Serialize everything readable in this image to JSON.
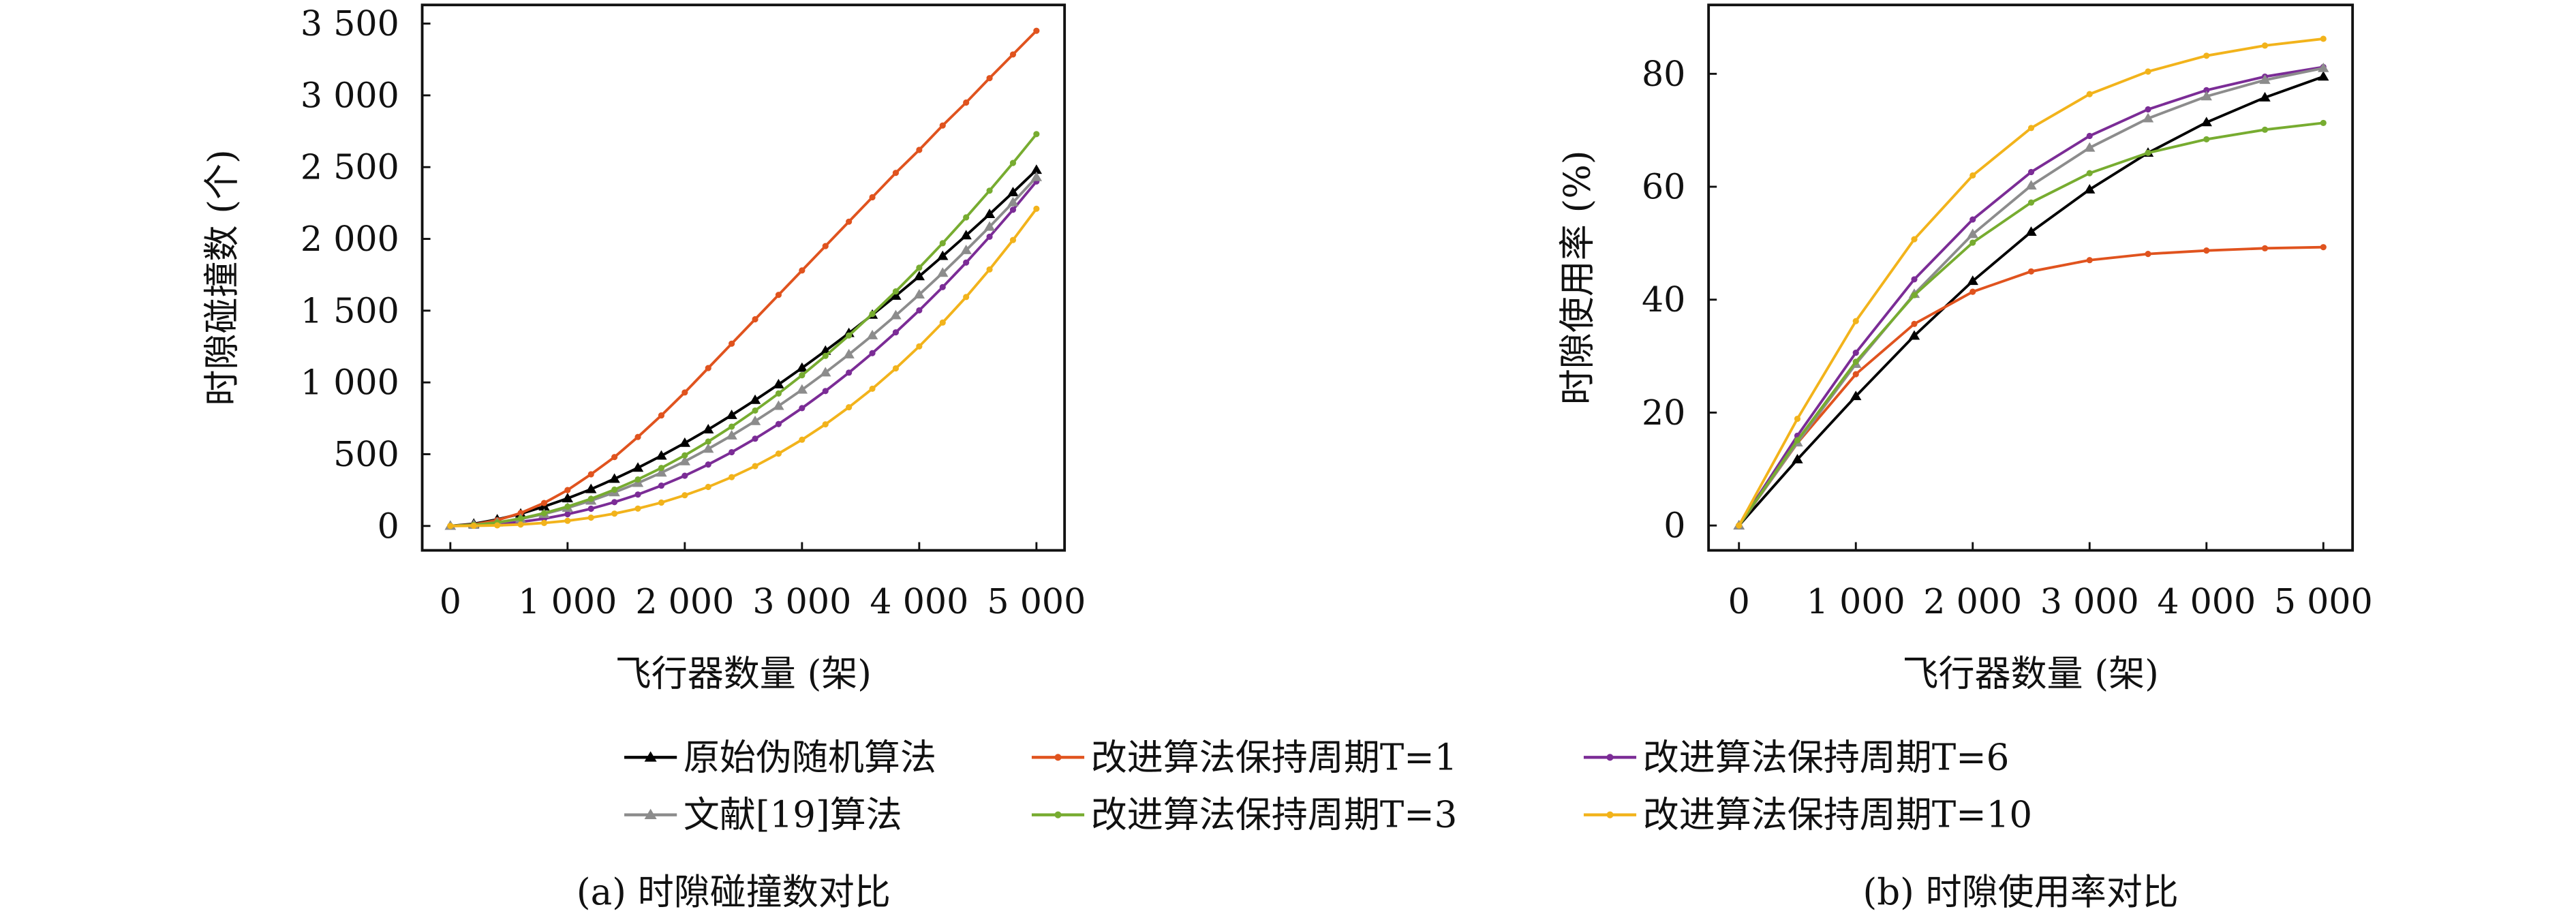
{
  "chart_data": [
    {
      "type": "line",
      "caption": "(a) 时隙碰撞数对比",
      "xlabel": "飞行器数量 (架)",
      "ylabel": "时隙碰撞数 (个)",
      "xlim": [
        -240,
        5240
      ],
      "ylim": [
        -170,
        3630
      ],
      "xticks": [
        0,
        {
          "value": 1000,
          "label": "1 000"
        },
        {
          "value": 2000,
          "label": "2 000"
        },
        {
          "value": 3000,
          "label": "3 000"
        },
        {
          "value": 4000,
          "label": "4 000"
        },
        {
          "value": 5000,
          "label": "5 000"
        }
      ],
      "yticks": [
        0,
        500,
        {
          "value": 1000,
          "label": "1 000"
        },
        {
          "value": 1500,
          "label": "1 500"
        },
        {
          "value": 2000,
          "label": "2 000"
        },
        {
          "value": 2500,
          "label": "2 500"
        },
        {
          "value": 3000,
          "label": "3 000"
        },
        {
          "value": 3500,
          "label": "3 500"
        }
      ],
      "x": [
        0,
        200,
        400,
        600,
        800,
        1000,
        1200,
        1400,
        1600,
        1800,
        2000,
        2200,
        2400,
        2600,
        2800,
        3000,
        3200,
        3400,
        3600,
        3800,
        4000,
        4200,
        4400,
        4600,
        4800,
        5000
      ],
      "series": [
        {
          "name": "原始伪随机算法",
          "color": "#000000",
          "marker": "triangle",
          "values": [
            0,
            15,
            45,
            85,
            135,
            192,
            256,
            328,
            405,
            489,
            578,
            672,
            772,
            877,
            986,
            1101,
            1220,
            1343,
            1471,
            1603,
            1739,
            1880,
            2024,
            2172,
            2324,
            2480
          ]
        },
        {
          "name": "改进算法保持周期T=1",
          "color": "#e0531e",
          "marker": "circle",
          "values": [
            0,
            10,
            40,
            90,
            160,
            250,
            360,
            480,
            620,
            770,
            930,
            1100,
            1270,
            1440,
            1610,
            1780,
            1950,
            2120,
            2290,
            2460,
            2620,
            2790,
            2950,
            3120,
            3285,
            3450
          ]
        },
        {
          "name": "改进算法保持周期T=6",
          "color": "#7b2c96",
          "marker": "circle",
          "values": [
            0,
            3,
            12,
            28,
            51,
            82,
            120,
            166,
            219,
            281,
            350,
            428,
            514,
            608,
            710,
            821,
            940,
            1068,
            1204,
            1349,
            1502,
            1664,
            1835,
            2015,
            2203,
            2400
          ]
        },
        {
          "name": "文献[19]算法",
          "color": "#8c8c8c",
          "marker": "triangle",
          "values": [
            0,
            7,
            23,
            49,
            83,
            126,
            176,
            234,
            299,
            371,
            450,
            537,
            630,
            730,
            836,
            949,
            1069,
            1195,
            1328,
            1467,
            1612,
            1763,
            1921,
            2084,
            2254,
            2430
          ]
        },
        {
          "name": "改进算法保持周期T=3",
          "color": "#77ac30",
          "marker": "circle",
          "values": [
            0,
            7,
            24,
            52,
            89,
            135,
            189,
            253,
            324,
            404,
            492,
            588,
            692,
            804,
            923,
            1050,
            1185,
            1327,
            1477,
            1634,
            1799,
            1970,
            2150,
            2336,
            2529,
            2730
          ]
        },
        {
          "name": "改进算法保持周期T=10",
          "color": "#f2b31b",
          "marker": "circle",
          "values": [
            0,
            1,
            4,
            10,
            21,
            36,
            58,
            86,
            121,
            163,
            214,
            272,
            340,
            417,
            504,
            601,
            708,
            827,
            956,
            1098,
            1251,
            1417,
            1595,
            1787,
            1992,
            2210
          ]
        }
      ]
    },
    {
      "type": "line",
      "caption": "(b) 时隙使用率对比",
      "xlabel": "飞行器数量 (架)",
      "ylabel": "时隙使用率 (%)",
      "xlim": [
        -260,
        5250
      ],
      "ylim": [
        -4.4,
        92.2
      ],
      "xticks": [
        0,
        {
          "value": 1000,
          "label": "1 000"
        },
        {
          "value": 2000,
          "label": "2 000"
        },
        {
          "value": 3000,
          "label": "3 000"
        },
        {
          "value": 4000,
          "label": "4 000"
        },
        {
          "value": 5000,
          "label": "5 000"
        }
      ],
      "yticks": [
        0,
        20,
        40,
        60,
        80
      ],
      "x": [
        0,
        500,
        1000,
        1500,
        2000,
        2500,
        3000,
        3500,
        4000,
        4500,
        5000
      ],
      "series": [
        {
          "color": "#000000",
          "marker": "triangle",
          "values": [
            0,
            11.7,
            22.9,
            33.6,
            43.3,
            52.0,
            59.5,
            66.0,
            71.4,
            75.8,
            79.5
          ]
        },
        {
          "color": "#e0531e",
          "marker": "circle",
          "values": [
            0,
            14.6,
            26.8,
            35.7,
            41.4,
            45.0,
            47.0,
            48.1,
            48.7,
            49.1,
            49.3
          ]
        },
        {
          "color": "#7b2c96",
          "marker": "circle",
          "values": [
            0,
            15.9,
            30.6,
            43.6,
            54.2,
            62.6,
            69.0,
            73.7,
            77.1,
            79.5,
            81.2
          ]
        },
        {
          "color": "#8c8c8c",
          "marker": "triangle",
          "values": [
            0,
            14.7,
            28.6,
            41.0,
            51.6,
            60.2,
            66.9,
            72.1,
            76.0,
            78.9,
            81.0
          ]
        },
        {
          "color": "#77ac30",
          "marker": "circle",
          "values": [
            0,
            15.1,
            29.0,
            40.8,
            50.1,
            57.2,
            62.4,
            66.0,
            68.4,
            70.1,
            71.3
          ]
        },
        {
          "color": "#f2b31b",
          "marker": "circle",
          "values": [
            0,
            18.9,
            36.2,
            50.7,
            62.0,
            70.4,
            76.4,
            80.4,
            83.2,
            85.0,
            86.2
          ]
        }
      ]
    }
  ]
}
